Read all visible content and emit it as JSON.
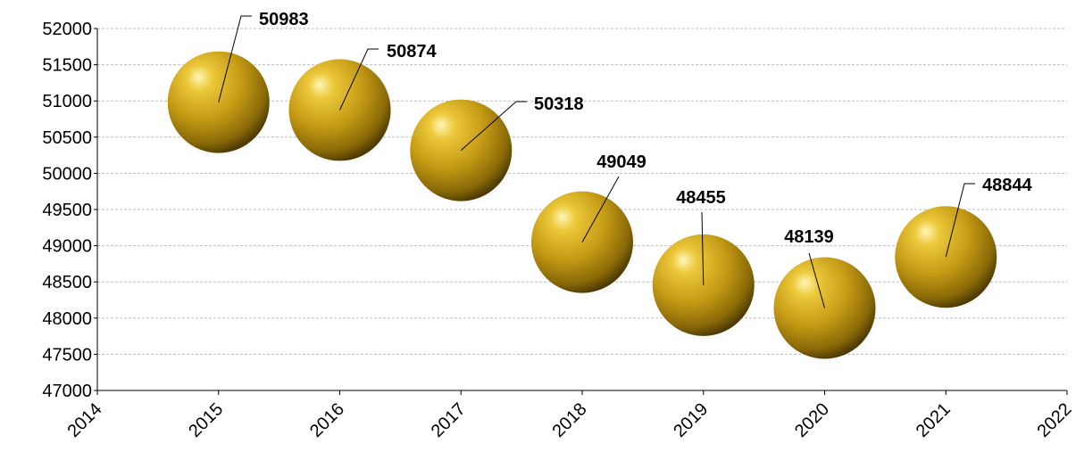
{
  "chart_data": {
    "type": "scatter",
    "title": "",
    "xlabel": "",
    "ylabel": "",
    "xlim": [
      2014,
      2022
    ],
    "ylim": [
      47000,
      52000
    ],
    "x_ticks": [
      2014,
      2015,
      2016,
      2017,
      2018,
      2019,
      2020,
      2021,
      2022
    ],
    "y_ticks": [
      47000,
      47500,
      48000,
      48500,
      49000,
      49500,
      50000,
      50500,
      51000,
      51500,
      52000
    ],
    "grid": true,
    "legend": "none",
    "marker": "3d-sphere",
    "marker_color": "#c9a21c",
    "series": [
      {
        "x": [
          2015,
          2016,
          2017,
          2018,
          2019,
          2020,
          2021
        ],
        "y": [
          50983,
          50874,
          50318,
          49049,
          48455,
          48139,
          48844
        ],
        "labels": [
          "50983",
          "50874",
          "50318",
          "49049",
          "48455",
          "48139",
          "48844"
        ]
      }
    ]
  }
}
